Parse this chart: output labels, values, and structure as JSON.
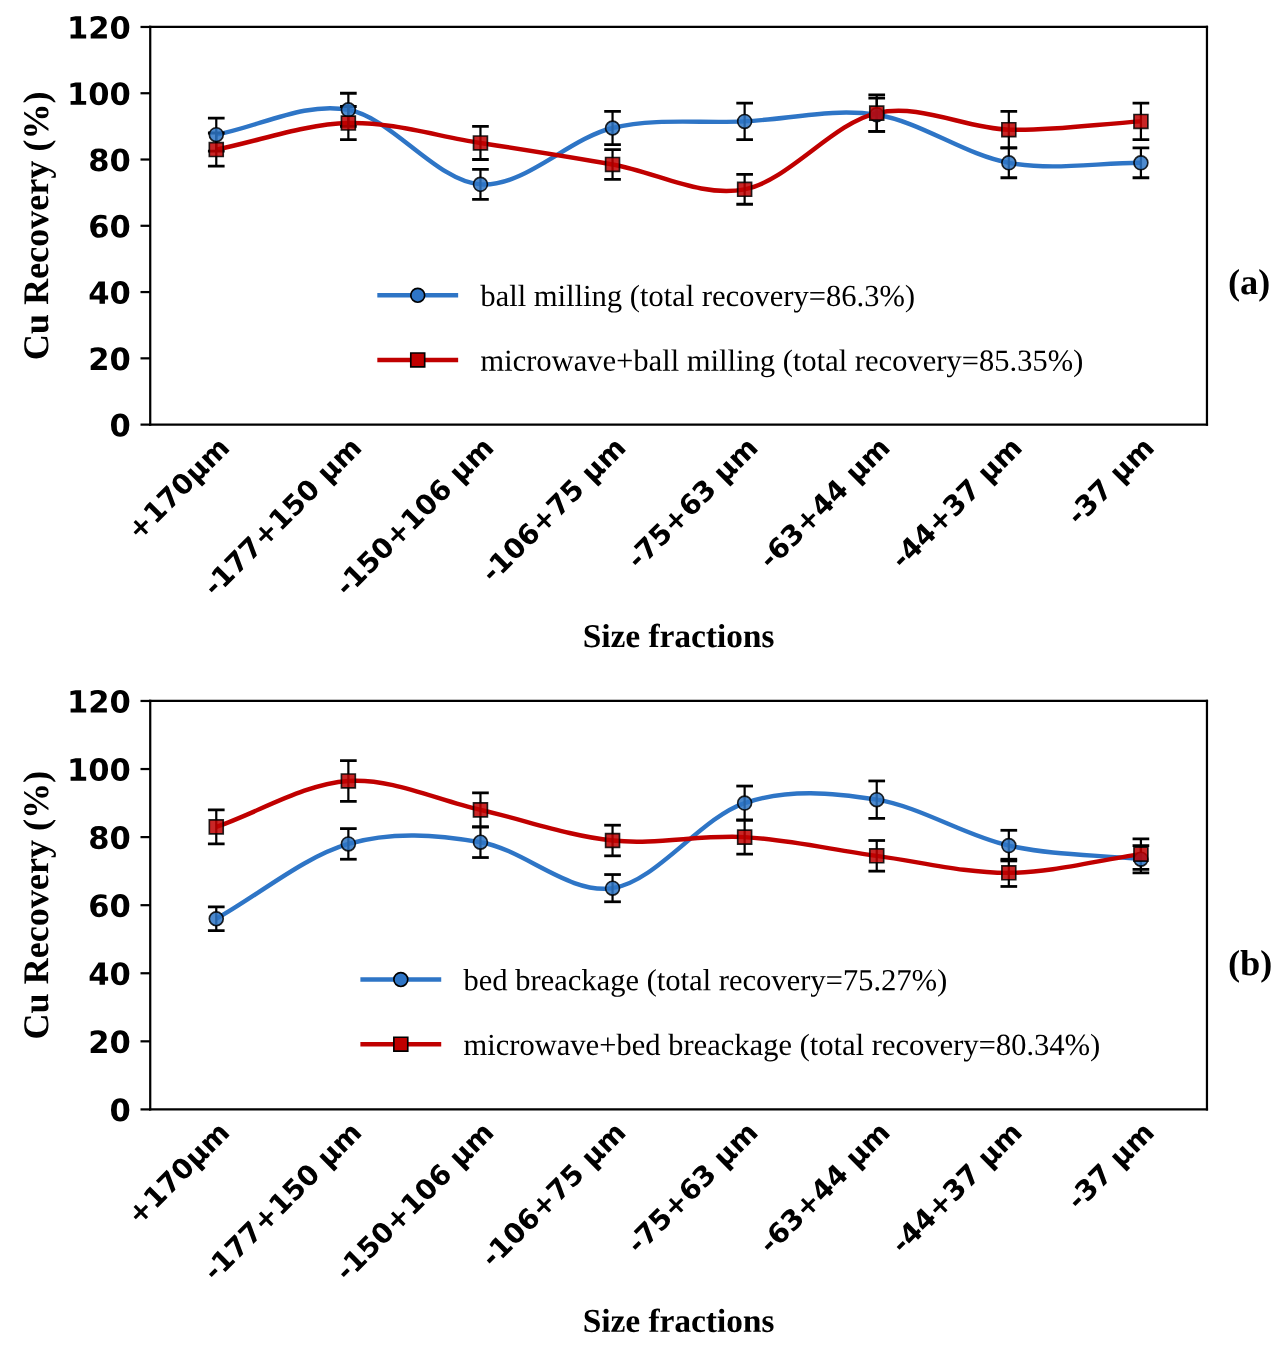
{
  "chart_data": [
    {
      "type": "line",
      "categories": [
        "+170µm",
        "-177+150 µm",
        "-150+106 µm",
        "-106+75 µm",
        "-75+63 µm",
        "-63+44 µm",
        "-44+37 µm",
        "-37 µm"
      ],
      "xlabel": "Size fractions",
      "ylabel": "Cu Recovery (%)",
      "ylim": [
        0,
        120
      ],
      "yticks": [
        0,
        20,
        40,
        60,
        80,
        100,
        120
      ],
      "grid": false,
      "legend": "bottom",
      "annotations": [
        "(a)"
      ],
      "series": [
        {
          "name": "ball milling (total recovery=86.3%)",
          "color": "#2e75c6",
          "marker": "circle",
          "values": [
            87.5,
            95,
            72.5,
            89.5,
            91.5,
            93.5,
            79,
            79
          ],
          "errors": [
            5,
            5,
            4.5,
            5,
            5.5,
            5,
            4.5,
            4.5
          ]
        },
        {
          "name": "microwave+ball milling (total recovery=85.35%)",
          "color": "#c00000",
          "marker": "square",
          "values": [
            83,
            91,
            85,
            78.5,
            71,
            94,
            89,
            91.5
          ],
          "errors": [
            5,
            5,
            5,
            4.5,
            4.5,
            5.5,
            5.5,
            5.5
          ]
        }
      ]
    },
    {
      "type": "line",
      "categories": [
        "+170µm",
        "-177+150 µm",
        "-150+106 µm",
        "-106+75 µm",
        "-75+63 µm",
        "-63+44 µm",
        "-44+37 µm",
        "-37 µm"
      ],
      "xlabel": "Size fractions",
      "ylabel": "Cu Recovery (%)",
      "ylim": [
        0,
        120
      ],
      "yticks": [
        0,
        20,
        40,
        60,
        80,
        100,
        120
      ],
      "grid": false,
      "legend": "bottom",
      "annotations": [
        "(b)"
      ],
      "series": [
        {
          "name": "bed breackage (total recovery=75.27%)",
          "color": "#2e75c6",
          "marker": "circle",
          "values": [
            56,
            78,
            78.5,
            65,
            90,
            91,
            77.5,
            73.5
          ],
          "errors": [
            3.5,
            4.5,
            4.5,
            4,
            5,
            5.5,
            4.5,
            4
          ]
        },
        {
          "name": "microwave+bed breackage (total recovery=80.34%)",
          "color": "#c00000",
          "marker": "square",
          "values": [
            83,
            96.5,
            88,
            79,
            80,
            74.5,
            69.5,
            75
          ],
          "errors": [
            5,
            6,
            5,
            4.5,
            5,
            4.5,
            4,
            4.5
          ]
        }
      ]
    }
  ]
}
